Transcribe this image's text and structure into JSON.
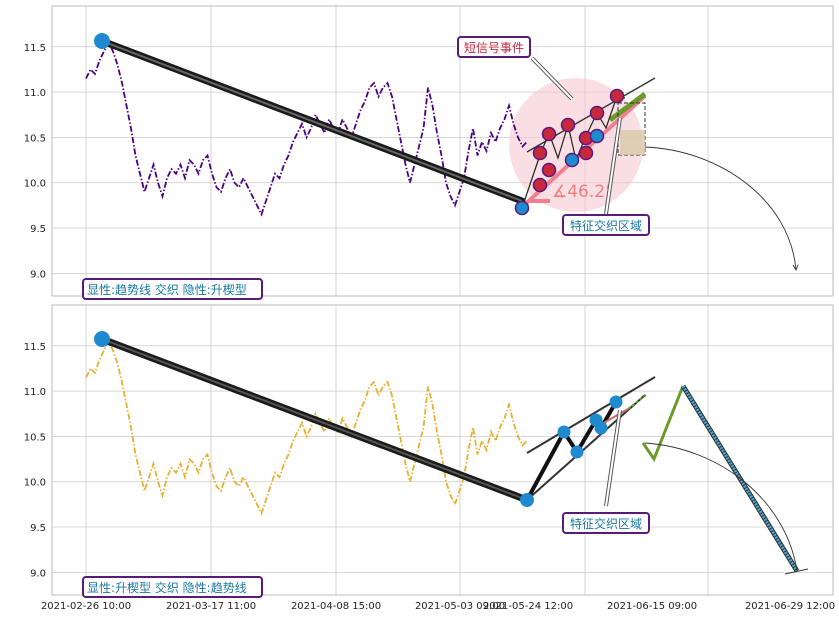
{
  "colors": {
    "top_series": "#4b0082",
    "bottom_series": "#e8b030",
    "trend": "#1a1a1a",
    "marker_blue": "#1f8ad0",
    "marker_red": "#c8283c",
    "pink_line": "#f08090",
    "green_line": "#6a9a2a",
    "box_border": "#5a1a7a",
    "box_text": "#1a7aa0",
    "signal_text": "#c0283c",
    "angle_text": "#f08080",
    "fill_cyan": "#4aa8d8",
    "grid": "#cccccc"
  },
  "x_ticks": [
    "2021-02-26 10:00",
    "2021-03-17 11:00",
    "2021-04-08 15:00",
    "2021-05-03 09:00",
    "2021-05-24 12:00",
    "2021-06-15 09:00",
    "2021-06-29 12:00"
  ],
  "top_panel": {
    "y_ticks": [
      "11.5",
      "11.0",
      "10.5",
      "10.0",
      "9.5",
      "9.0"
    ],
    "label": "显性:趋势线 交织 隐性:升楔型",
    "signal_label": "短信号事件",
    "feature_label": "特征交织区域",
    "angle_label": "∡46.2°"
  },
  "bottom_panel": {
    "y_ticks": [
      "11.5",
      "11.0",
      "10.5",
      "10.0",
      "9.5",
      "9.0"
    ],
    "label": "显性:升楔型 交织 隐性:趋势线",
    "feature_label": "特征交织区域"
  },
  "chart_data": [
    {
      "type": "line",
      "panel": "top",
      "ylim": [
        8.75,
        11.95
      ],
      "x_range": [
        -5,
        120
      ],
      "series": [
        {
          "values": [
            [
              0,
              11.15
            ],
            [
              1,
              11.25
            ],
            [
              2,
              11.2
            ],
            [
              3,
              11.35
            ],
            [
              4,
              11.45
            ],
            [
              5,
              11.55
            ],
            [
              6,
              11.45
            ],
            [
              7,
              11.3
            ],
            [
              8,
              11.1
            ],
            [
              9,
              10.85
            ],
            [
              10,
              10.6
            ],
            [
              11,
              10.3
            ],
            [
              12,
              10.1
            ],
            [
              13,
              9.9
            ],
            [
              14,
              10.05
            ],
            [
              15,
              10.2
            ],
            [
              16,
              10.0
            ],
            [
              17,
              9.85
            ],
            [
              18,
              10.05
            ],
            [
              19,
              10.15
            ],
            [
              20,
              10.1
            ],
            [
              21,
              10.2
            ],
            [
              22,
              10.05
            ],
            [
              23,
              10.25
            ],
            [
              24,
              10.2
            ],
            [
              25,
              10.1
            ],
            [
              26,
              10.25
            ],
            [
              27,
              10.3
            ],
            [
              28,
              10.1
            ],
            [
              29,
              9.95
            ],
            [
              30,
              9.9
            ],
            [
              31,
              10.05
            ],
            [
              32,
              10.15
            ],
            [
              33,
              10.0
            ],
            [
              34,
              9.95
            ],
            [
              35,
              10.05
            ],
            [
              36,
              9.95
            ],
            [
              37,
              9.85
            ],
            [
              38,
              9.75
            ],
            [
              39,
              9.65
            ],
            [
              40,
              9.8
            ],
            [
              41,
              9.95
            ],
            [
              42,
              10.1
            ],
            [
              43,
              10.05
            ],
            [
              44,
              10.2
            ],
            [
              45,
              10.3
            ],
            [
              46,
              10.45
            ],
            [
              47,
              10.55
            ],
            [
              48,
              10.65
            ],
            [
              49,
              10.5
            ],
            [
              50,
              10.6
            ],
            [
              51,
              10.75
            ],
            [
              52,
              10.65
            ],
            [
              53,
              10.55
            ],
            [
              54,
              10.7
            ],
            [
              55,
              10.6
            ],
            [
              56,
              10.55
            ],
            [
              57,
              10.7
            ],
            [
              58,
              10.6
            ],
            [
              59,
              10.5
            ],
            [
              60,
              10.65
            ],
            [
              61,
              10.8
            ],
            [
              62,
              10.9
            ],
            [
              63,
              11.05
            ],
            [
              64,
              11.1
            ],
            [
              65,
              10.95
            ],
            [
              66,
              11.05
            ],
            [
              67,
              11.1
            ],
            [
              68,
              10.95
            ],
            [
              69,
              10.7
            ],
            [
              70,
              10.45
            ],
            [
              71,
              10.2
            ],
            [
              72,
              10.0
            ],
            [
              73,
              10.2
            ],
            [
              74,
              10.4
            ],
            [
              75,
              10.6
            ],
            [
              76,
              11.05
            ],
            [
              77,
              10.85
            ],
            [
              78,
              10.55
            ],
            [
              79,
              10.3
            ],
            [
              80,
              10.0
            ],
            [
              81,
              9.85
            ],
            [
              82,
              9.75
            ],
            [
              83,
              9.9
            ],
            [
              84,
              10.05
            ],
            [
              85,
              10.35
            ],
            [
              86,
              10.6
            ],
            [
              87,
              10.3
            ],
            [
              88,
              10.45
            ],
            [
              89,
              10.35
            ],
            [
              90,
              10.55
            ],
            [
              91,
              10.45
            ],
            [
              92,
              10.6
            ],
            [
              93,
              10.7
            ],
            [
              94,
              10.85
            ],
            [
              95,
              10.65
            ],
            [
              96,
              10.5
            ],
            [
              97,
              10.4
            ],
            [
              98,
              10.45
            ]
          ]
        }
      ]
    },
    {
      "type": "line",
      "panel": "bottom",
      "ylim": [
        8.75,
        11.95
      ],
      "x_range": [
        -5,
        120
      ],
      "series": [
        {
          "values": [
            [
              0,
              11.15
            ],
            [
              1,
              11.25
            ],
            [
              2,
              11.2
            ],
            [
              3,
              11.35
            ],
            [
              4,
              11.45
            ],
            [
              5,
              11.55
            ],
            [
              6,
              11.45
            ],
            [
              7,
              11.3
            ],
            [
              8,
              11.1
            ],
            [
              9,
              10.85
            ],
            [
              10,
              10.6
            ],
            [
              11,
              10.3
            ],
            [
              12,
              10.1
            ],
            [
              13,
              9.9
            ],
            [
              14,
              10.05
            ],
            [
              15,
              10.2
            ],
            [
              16,
              10.0
            ],
            [
              17,
              9.85
            ],
            [
              18,
              10.05
            ],
            [
              19,
              10.15
            ],
            [
              20,
              10.1
            ],
            [
              21,
              10.2
            ],
            [
              22,
              10.05
            ],
            [
              23,
              10.25
            ],
            [
              24,
              10.2
            ],
            [
              25,
              10.1
            ],
            [
              26,
              10.25
            ],
            [
              27,
              10.3
            ],
            [
              28,
              10.1
            ],
            [
              29,
              9.95
            ],
            [
              30,
              9.9
            ],
            [
              31,
              10.05
            ],
            [
              32,
              10.15
            ],
            [
              33,
              10.0
            ],
            [
              34,
              9.95
            ],
            [
              35,
              10.05
            ],
            [
              36,
              9.95
            ],
            [
              37,
              9.85
            ],
            [
              38,
              9.75
            ],
            [
              39,
              9.65
            ],
            [
              40,
              9.8
            ],
            [
              41,
              9.95
            ],
            [
              42,
              10.1
            ],
            [
              43,
              10.05
            ],
            [
              44,
              10.2
            ],
            [
              45,
              10.3
            ],
            [
              46,
              10.45
            ],
            [
              47,
              10.55
            ],
            [
              48,
              10.65
            ],
            [
              49,
              10.5
            ],
            [
              50,
              10.6
            ],
            [
              51,
              10.75
            ],
            [
              52,
              10.65
            ],
            [
              53,
              10.55
            ],
            [
              54,
              10.7
            ],
            [
              55,
              10.6
            ],
            [
              56,
              10.55
            ],
            [
              57,
              10.7
            ],
            [
              58,
              10.6
            ],
            [
              59,
              10.5
            ],
            [
              60,
              10.65
            ],
            [
              61,
              10.8
            ],
            [
              62,
              10.9
            ],
            [
              63,
              11.05
            ],
            [
              64,
              11.1
            ],
            [
              65,
              10.95
            ],
            [
              66,
              11.05
            ],
            [
              67,
              11.1
            ],
            [
              68,
              10.95
            ],
            [
              69,
              10.7
            ],
            [
              70,
              10.45
            ],
            [
              71,
              10.2
            ],
            [
              72,
              10.0
            ],
            [
              73,
              10.2
            ],
            [
              74,
              10.4
            ],
            [
              75,
              10.6
            ],
            [
              76,
              11.05
            ],
            [
              77,
              10.85
            ],
            [
              78,
              10.55
            ],
            [
              79,
              10.3
            ],
            [
              80,
              10.0
            ],
            [
              81,
              9.85
            ],
            [
              82,
              9.75
            ],
            [
              83,
              9.9
            ],
            [
              84,
              10.05
            ],
            [
              85,
              10.35
            ],
            [
              86,
              10.6
            ],
            [
              87,
              10.3
            ],
            [
              88,
              10.45
            ],
            [
              89,
              10.35
            ],
            [
              90,
              10.55
            ],
            [
              91,
              10.45
            ],
            [
              92,
              10.6
            ],
            [
              93,
              10.7
            ],
            [
              94,
              10.85
            ],
            [
              95,
              10.65
            ],
            [
              96,
              10.5
            ],
            [
              97,
              10.4
            ],
            [
              98,
              10.45
            ]
          ]
        }
      ]
    }
  ]
}
